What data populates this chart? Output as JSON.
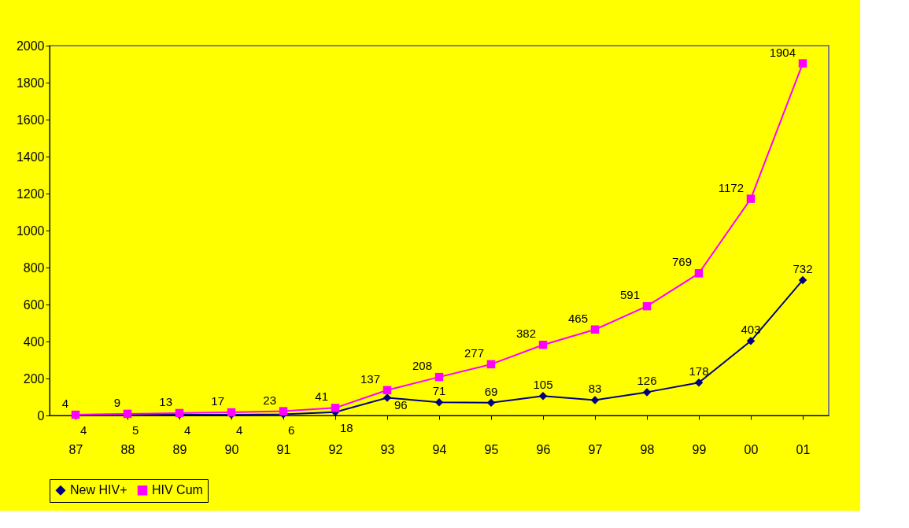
{
  "chart_data": {
    "type": "line",
    "categories": [
      "87",
      "88",
      "89",
      "90",
      "91",
      "92",
      "93",
      "94",
      "95",
      "96",
      "97",
      "98",
      "99",
      "00",
      "01"
    ],
    "series": [
      {
        "name": "New HIV+",
        "color": "#000080",
        "marker": "diamond",
        "values": [
          4,
          5,
          4,
          4,
          6,
          18,
          96,
          71,
          69,
          105,
          83,
          126,
          178,
          403,
          732
        ]
      },
      {
        "name": "HIV Cum",
        "color": "#ff00ff",
        "marker": "square",
        "values": [
          4,
          9,
          13,
          17,
          23,
          41,
          137,
          208,
          277,
          382,
          465,
          591,
          769,
          1172,
          1904
        ]
      }
    ],
    "ylim": [
      0,
      2000
    ],
    "yticks": [
      0,
      200,
      400,
      600,
      800,
      1000,
      1200,
      1400,
      1600,
      1800,
      2000
    ],
    "data_labels": true,
    "legend": "bottom",
    "grid": false
  }
}
